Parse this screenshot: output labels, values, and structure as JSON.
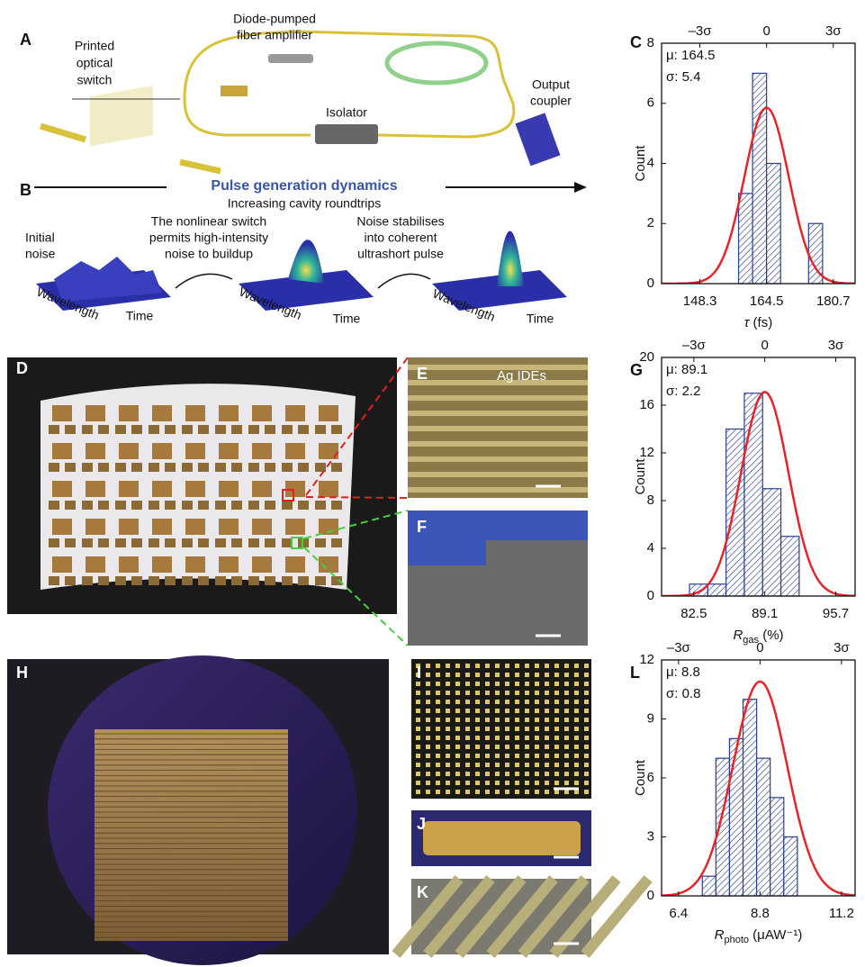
{
  "panel_labels": [
    "A",
    "B",
    "C",
    "D",
    "E",
    "F",
    "G",
    "H",
    "I",
    "J",
    "K",
    "L"
  ],
  "diagram": {
    "switch_label": [
      "Printed",
      "optical",
      "switch"
    ],
    "amplifier_label": [
      "Diode-pumped",
      "fiber amplifier"
    ],
    "isolator_label": "Isolator",
    "coupler_label": [
      "Output",
      "coupler"
    ]
  },
  "dynamics": {
    "title": "Pulse generation dynamics",
    "subtitle": "Increasing cavity roundtrips",
    "initial": [
      "Initial",
      "noise"
    ],
    "captions": [
      [
        "The nonlinear switch",
        "permits high-intensity",
        "noise to buildup"
      ],
      [
        "Noise stabilises",
        "into coherent",
        "ultrashort pulse"
      ]
    ],
    "axis_wavelength": "Wavelength",
    "axis_time": "Time"
  },
  "photo_annotation": "Ag IDEs",
  "chart_data": [
    {
      "type": "histogram",
      "ylabel": "Count",
      "xlabel": [
        "τ",
        " (fs)"
      ],
      "bins": [
        157.7,
        161.1,
        164.5,
        167.9,
        171.3,
        174.7,
        178.1
      ],
      "values": [
        3,
        7,
        4,
        0,
        0,
        2
      ],
      "xlim": [
        139,
        186
      ],
      "ylim": [
        0,
        8
      ],
      "yticks": [
        0,
        2,
        4,
        6,
        8
      ],
      "xticks": [
        148.3,
        164.5,
        180.7
      ],
      "x2ticks": [
        {
          "value": 148.3,
          "label": "–3σ"
        },
        {
          "value": 164.5,
          "label": "0"
        },
        {
          "value": 180.7,
          "label": "3σ"
        }
      ],
      "fit": {
        "mu": 164.5,
        "mu_label": "μ: 164.5",
        "sigma": 5.4,
        "sigma_label": "σ: 5.4",
        "peak": 5.85,
        "color": "#e3262b"
      },
      "color": "#2a3f8f"
    },
    {
      "type": "histogram",
      "ylabel": "Count",
      "xlabel": [
        "R",
        "gas",
        " (%)"
      ],
      "bins": [
        82.1,
        83.8,
        85.5,
        87.2,
        88.9,
        90.6,
        92.3
      ],
      "values": [
        1,
        1,
        14,
        17,
        9,
        5
      ],
      "xlim": [
        79.5,
        97.5
      ],
      "ylim": [
        0,
        20
      ],
      "yticks": [
        0,
        4,
        8,
        12,
        16,
        20
      ],
      "xticks": [
        82.5,
        89.1,
        95.7
      ],
      "x2ticks": [
        {
          "value": 82.5,
          "label": "–3σ"
        },
        {
          "value": 89.1,
          "label": "0"
        },
        {
          "value": 95.7,
          "label": "3σ"
        }
      ],
      "fit": {
        "mu": 89.1,
        "mu_label": "μ: 89.1",
        "sigma": 2.2,
        "sigma_label": "σ: 2.2",
        "peak": 17.1,
        "color": "#e3262b"
      },
      "color": "#2a3f8f"
    },
    {
      "type": "histogram",
      "ylabel": "Count",
      "xlabel": [
        "R",
        "photo",
        " (μAW⁻¹)"
      ],
      "bins": [
        7.1,
        7.5,
        7.9,
        8.3,
        8.7,
        9.1,
        9.5,
        9.9
      ],
      "values": [
        1,
        7,
        8,
        10,
        7,
        5,
        3
      ],
      "xlim": [
        5.9,
        11.6
      ],
      "ylim": [
        0,
        12
      ],
      "yticks": [
        0,
        3,
        6,
        9,
        12
      ],
      "xticks": [
        6.4,
        8.8,
        11.2
      ],
      "x2ticks": [
        {
          "value": 6.4,
          "label": "–3σ"
        },
        {
          "value": 8.8,
          "label": "0"
        },
        {
          "value": 11.2,
          "label": "3σ"
        }
      ],
      "fit": {
        "mu": 8.8,
        "mu_label": "μ: 8.8",
        "sigma": 0.8,
        "sigma_label": "σ: 0.8",
        "peak": 10.9,
        "color": "#e3262b"
      },
      "color": "#2a3f8f"
    }
  ]
}
